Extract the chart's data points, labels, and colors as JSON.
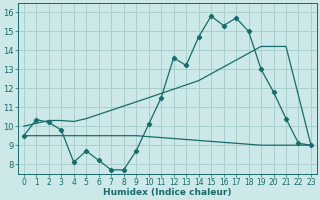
{
  "xlabel": "Humidex (Indice chaleur)",
  "bg_color": "#cce8e8",
  "grid_color": "#aacfcf",
  "line_color": "#1a6b6b",
  "xlim": [
    -0.5,
    23.5
  ],
  "ylim": [
    7.5,
    16.5
  ],
  "yticks": [
    8,
    9,
    10,
    11,
    12,
    13,
    14,
    15,
    16
  ],
  "xticks": [
    0,
    1,
    2,
    3,
    4,
    5,
    6,
    7,
    8,
    9,
    10,
    11,
    12,
    13,
    14,
    15,
    16,
    17,
    18,
    19,
    20,
    21,
    22,
    23
  ],
  "line1_x": [
    0,
    1,
    2,
    3,
    4,
    5,
    6,
    7,
    8,
    9,
    10,
    11,
    12,
    13,
    14,
    15,
    16,
    17,
    18,
    19,
    20,
    21,
    22,
    23
  ],
  "line1_y": [
    9.5,
    10.35,
    10.2,
    9.8,
    8.1,
    8.7,
    8.2,
    7.7,
    7.7,
    8.7,
    10.1,
    11.5,
    13.6,
    13.2,
    14.7,
    15.8,
    15.3,
    15.7,
    15.0,
    13.0,
    11.8,
    10.4,
    9.1,
    9.0
  ],
  "line2_x": [
    0,
    2,
    3,
    4,
    5,
    10,
    14,
    19,
    21,
    23
  ],
  "line2_y": [
    10.0,
    10.3,
    10.3,
    10.25,
    10.4,
    11.5,
    12.4,
    14.2,
    14.2,
    9.0
  ],
  "line3_x": [
    0,
    9,
    19,
    21,
    23
  ],
  "line3_y": [
    9.5,
    9.5,
    9.0,
    9.0,
    9.0
  ],
  "figsize": [
    3.2,
    2.0
  ],
  "dpi": 100
}
